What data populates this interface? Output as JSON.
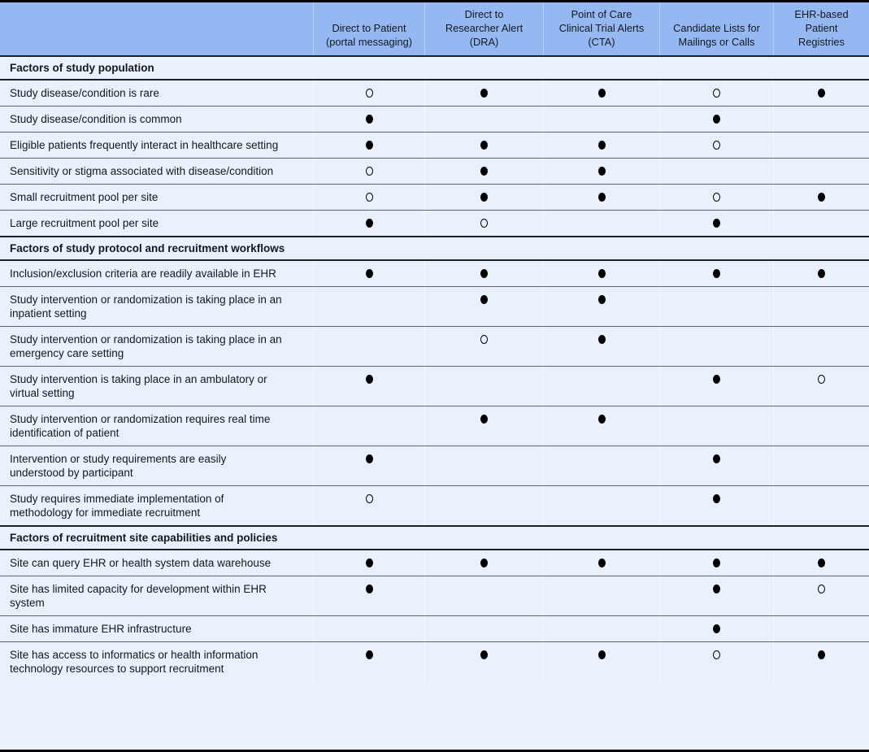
{
  "colors": {
    "header_bg": "#95b8f2",
    "row_bg": "#e9f1fc",
    "circle": "#000000"
  },
  "table": {
    "columns": [
      "Direct to Patient\n(portal messaging)",
      "Direct to\nResearcher Alert\n(DRA)",
      "Point of Care\nClinical Trial Alerts\n(CTA)",
      "Candidate Lists for\nMailings or Calls",
      "EHR-based\nPatient\nRegistries"
    ],
    "symbols": {
      "filled": "●",
      "open": "○"
    },
    "sections": [
      {
        "title": "Factors of study population",
        "rows": [
          {
            "label": "Study disease/condition is rare",
            "cells": [
              "open",
              "filled",
              "filled",
              "open",
              "filled"
            ]
          },
          {
            "label": "Study disease/condition is common",
            "cells": [
              "filled",
              "",
              "",
              "filled",
              ""
            ]
          },
          {
            "label": "Eligible patients frequently interact in healthcare setting",
            "cells": [
              "filled",
              "filled",
              "filled",
              "open",
              ""
            ]
          },
          {
            "label": "Sensitivity or stigma associated with disease/condition",
            "cells": [
              "open",
              "filled",
              "filled",
              "",
              ""
            ]
          },
          {
            "label": "Small recruitment pool per site",
            "cells": [
              "open",
              "filled",
              "filled",
              "open",
              "filled"
            ]
          },
          {
            "label": "Large recruitment pool per site",
            "cells": [
              "filled",
              "open",
              "",
              "filled",
              ""
            ]
          }
        ]
      },
      {
        "title": "Factors of study protocol and recruitment workflows",
        "rows": [
          {
            "label": "Inclusion/exclusion criteria are readily available in EHR",
            "cells": [
              "filled",
              "filled",
              "filled",
              "filled",
              "filled"
            ]
          },
          {
            "label": "Study intervention or randomization is taking place in an inpatient setting",
            "cells": [
              "",
              "filled",
              "filled",
              "",
              ""
            ]
          },
          {
            "label": "Study intervention or randomization is taking place in an emergency care setting",
            "cells": [
              "",
              "open",
              "filled",
              "",
              ""
            ]
          },
          {
            "label": "Study intervention is taking place in an ambulatory or virtual setting",
            "cells": [
              "filled",
              "",
              "",
              "filled",
              "open"
            ]
          },
          {
            "label": "Study intervention or randomization requires real time identification of patient",
            "cells": [
              "",
              "filled",
              "filled",
              "",
              ""
            ]
          },
          {
            "label": "Intervention or study requirements are easily understood by participant",
            "cells": [
              "filled",
              "",
              "",
              "filled",
              ""
            ]
          },
          {
            "label": "Study requires immediate implementation of methodology for immediate recruitment",
            "cells": [
              "open",
              "",
              "",
              "filled",
              ""
            ]
          }
        ]
      },
      {
        "title": "Factors of recruitment site capabilities and policies",
        "rows": [
          {
            "label": "Site can query EHR or health system data warehouse",
            "cells": [
              "filled",
              "filled",
              "filled",
              "filled",
              "filled"
            ]
          },
          {
            "label": "Site has limited capacity for development within EHR system",
            "cells": [
              "filled",
              "",
              "",
              "filled",
              "open"
            ]
          },
          {
            "label": "Site has immature EHR infrastructure",
            "cells": [
              "",
              "",
              "",
              "filled",
              ""
            ]
          },
          {
            "label": "Site has access to informatics or health information technology resources to support recruitment",
            "cells": [
              "filled",
              "filled",
              "filled",
              "open",
              "filled"
            ]
          }
        ]
      }
    ]
  }
}
